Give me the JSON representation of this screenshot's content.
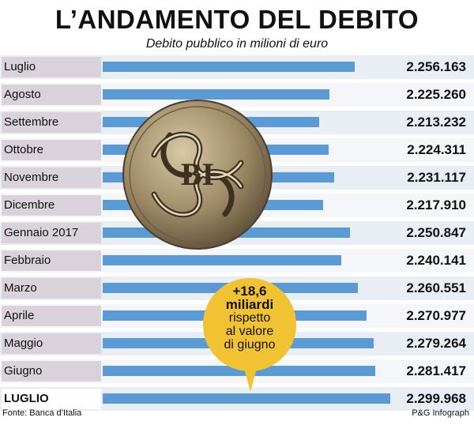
{
  "header": {
    "title": "L’ANDAMENTO DEL DEBITO",
    "subtitle": "Debito pubblico in milioni di euro"
  },
  "chart_data": {
    "type": "bar",
    "orientation": "horizontal",
    "categories": [
      "Luglio",
      "Agosto",
      "Settembre",
      "Ottobre",
      "Novembre",
      "Dicembre",
      "Gennaio 2017",
      "Febbraio",
      "Marzo",
      "Aprile",
      "Maggio",
      "Giugno",
      "LUGLIO"
    ],
    "value_labels": [
      "2.256.163",
      "2.225.260",
      "2.213.232",
      "2.224.311",
      "2.231.117",
      "2.217.910",
      "2.250.847",
      "2.240.141",
      "2.260.551",
      "2.270.977",
      "2.279.264",
      "2.281.417",
      "2.299.968"
    ],
    "values": [
      2256163,
      2225260,
      2213232,
      2224311,
      2231117,
      2217910,
      2250847,
      2240141,
      2260551,
      2270977,
      2279264,
      2281417,
      2299968
    ],
    "xlim": [
      2000000,
      2310000
    ],
    "highlight_last": true,
    "colors": {
      "bar": "#5b9bd5",
      "label_bg": "#d9d2da",
      "callout": "#f1c232"
    }
  },
  "callout": {
    "line1": "+18,6",
    "line2": "miliardi",
    "line3": "rispetto",
    "line4": "al valore",
    "line5": "di giugno"
  },
  "footer": {
    "source": "Fonte: Banca d’Italia",
    "credit": "P&G Infograph"
  },
  "image": {
    "icon": "bank-of-italy-coin-emblem"
  }
}
